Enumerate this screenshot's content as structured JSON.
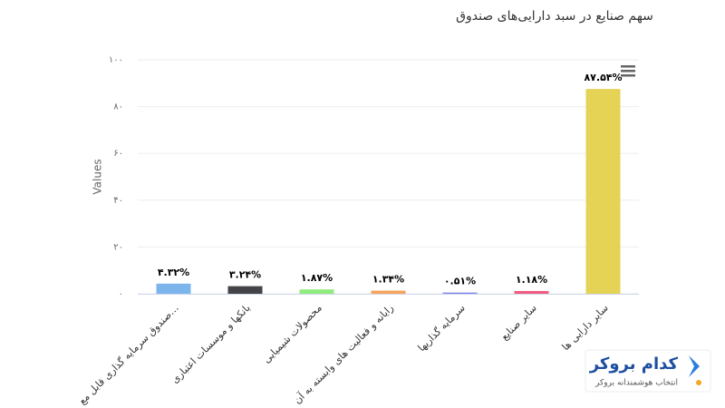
{
  "chart_data": {
    "type": "bar",
    "title": "سهم صنایع در سبد دارایی‌های صندوق",
    "y_label": "Values",
    "categories": [
      "صندوق سرمایه گذاری قابل مع…",
      "بانکها و موسسات اعتباری",
      "محصولات شیمیایی",
      "رایانه و فعالیت های وابسته به آن",
      "سرمایه گذاریها",
      "سایر صنایع",
      "سایر دارایی ها"
    ],
    "values": [
      4.32,
      3.24,
      1.87,
      1.34,
      0.51,
      1.18,
      87.54
    ],
    "value_labels": [
      "۴.۳۲%",
      "۳.۲۴%",
      "۱.۸۷%",
      "۱.۳۴%",
      "۰.۵۱%",
      "۱.۱۸%",
      "۸۷.۵۴%"
    ],
    "colors": [
      "#7cb5ec",
      "#434348",
      "#90ed7d",
      "#f7a35c",
      "#8085e9",
      "#f15c80",
      "#e4d354"
    ],
    "ylim": [
      0,
      100
    ],
    "yticks": [
      {
        "value": 0,
        "label": "۰"
      },
      {
        "value": 20,
        "label": "۲۰"
      },
      {
        "value": 40,
        "label": "۴۰"
      },
      {
        "value": 60,
        "label": "۶۰"
      },
      {
        "value": 80,
        "label": "۸۰"
      },
      {
        "value": 100,
        "label": "۱۰۰"
      }
    ],
    "grid": true
  },
  "watermark": {
    "brand": "کدام بروکر",
    "tagline": "انتخاب هوشمندانه بروکر"
  }
}
